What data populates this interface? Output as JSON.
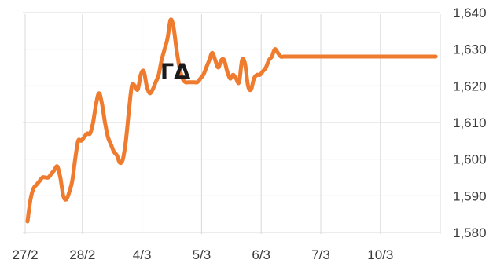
{
  "chart_data": {
    "type": "line",
    "title": "ΓΔ",
    "xlabel": "",
    "ylabel": "",
    "ylim": [
      1580,
      1640
    ],
    "y_ticks": [
      "1,580",
      "1,590",
      "1,600",
      "1,610",
      "1,620",
      "1,630",
      "1,640"
    ],
    "x_ticks": [
      "27/2",
      "28/2",
      "4/3",
      "5/3",
      "6/3",
      "7/3",
      "10/3"
    ],
    "grid": true,
    "series": [
      {
        "color": "#ef7b2e",
        "x": [
          0.0,
          0.05,
          0.1,
          0.15,
          0.2,
          0.25,
          0.3,
          0.35,
          0.4,
          0.45,
          0.5,
          0.55,
          0.6,
          0.65,
          0.7,
          0.75,
          0.8,
          0.85,
          0.9,
          0.95,
          1.0,
          1.05,
          1.1,
          1.15,
          1.2,
          1.25,
          1.3,
          1.35,
          1.4,
          1.45,
          1.5,
          1.55,
          1.6,
          1.65,
          1.7,
          1.75,
          1.8,
          1.85,
          1.9,
          1.95,
          2.0,
          2.05,
          2.1,
          2.15,
          2.2,
          2.25,
          2.3,
          2.35,
          2.4,
          2.45,
          2.5,
          2.55,
          2.6,
          2.65,
          2.7,
          2.75,
          2.8,
          2.85,
          2.9,
          2.95,
          3.0,
          3.05,
          3.1,
          3.15,
          3.2,
          3.25,
          3.3,
          3.35,
          3.4,
          3.45,
          3.5,
          3.55,
          3.6,
          3.65,
          3.7,
          3.75,
          3.8,
          3.85,
          3.9,
          3.95,
          4.0,
          4.05,
          4.1,
          4.15,
          4.2,
          4.25,
          4.3,
          4.35,
          4.4,
          4.45,
          4.5,
          4.55,
          4.6,
          4.65,
          4.7,
          4.75,
          4.8,
          4.85,
          4.9,
          4.95,
          5.0,
          5.05,
          5.1,
          5.15,
          5.2,
          5.25,
          5.3,
          5.35,
          5.4,
          5.45,
          5.5,
          5.55,
          5.6,
          5.65,
          5.7,
          5.75,
          5.8,
          5.85,
          5.9,
          5.95,
          6.0,
          6.05,
          6.1,
          6.15,
          6.2,
          6.25,
          6.3,
          6.35,
          6.4,
          6.45,
          6.5,
          6.55,
          6.6,
          6.65,
          6.7,
          6.75,
          6.8,
          6.85,
          6.9,
          6.95
        ],
        "values": [
          1583,
          1589,
          1592,
          1593,
          1594,
          1595,
          1595,
          1595,
          1596,
          1597,
          1598,
          1595,
          1590,
          1589,
          1591,
          1594,
          1600,
          1605,
          1605,
          1606,
          1607,
          1607,
          1610,
          1615,
          1618,
          1615,
          1610,
          1606,
          1604,
          1602,
          1601,
          1599,
          1600,
          1605,
          1613,
          1620,
          1620,
          1619,
          1623,
          1624,
          1620,
          1618,
          1619,
          1621,
          1623,
          1627,
          1630,
          1633,
          1638,
          1636,
          1630,
          1625,
          1622,
          1621,
          1621,
          1621,
          1621,
          1621,
          1622,
          1623,
          1625,
          1627,
          1629,
          1627,
          1625,
          1627,
          1627,
          1624,
          1622,
          1623,
          1622,
          1621,
          1627,
          1626,
          1620,
          1619,
          1622,
          1623,
          1623,
          1624,
          1625,
          1627,
          1628,
          1630,
          1629,
          1628,
          1628,
          1628,
          1628,
          1628,
          1628,
          1628,
          1628,
          1628,
          1628,
          1628,
          1628,
          1628,
          1628,
          1628,
          1628,
          1628,
          1628,
          1628,
          1628,
          1628,
          1628,
          1628,
          1628,
          1628,
          1628,
          1628,
          1628,
          1628,
          1628,
          1628,
          1628,
          1628,
          1628,
          1628,
          1628,
          1628,
          1628,
          1628,
          1628,
          1628,
          1628,
          1628,
          1628,
          1628,
          1628,
          1628,
          1628,
          1628,
          1628,
          1628,
          1628,
          1628,
          1628,
          1628
        ]
      }
    ]
  }
}
